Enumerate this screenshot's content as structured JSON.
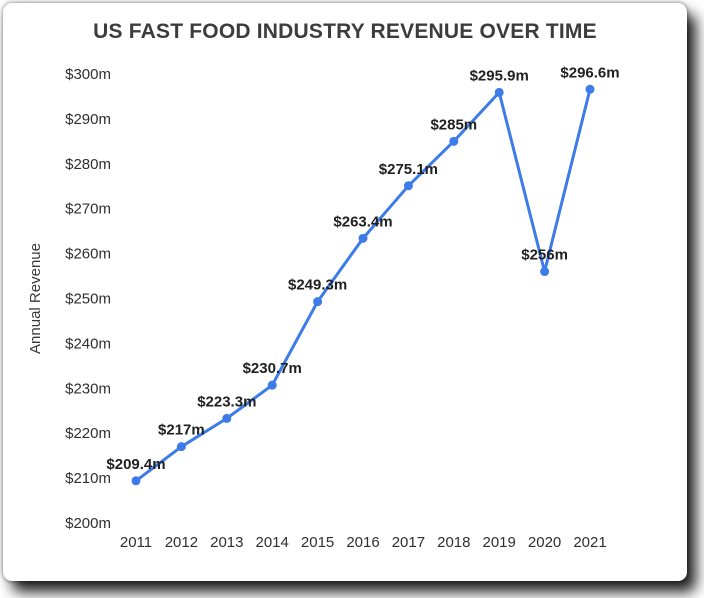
{
  "chart_data": {
    "type": "line",
    "title": "US FAST FOOD INDUSTRY REVENUE OVER TIME",
    "xlabel": "",
    "ylabel": "Annual Revenue",
    "categories": [
      "2011",
      "2012",
      "2013",
      "2014",
      "2015",
      "2016",
      "2017",
      "2018",
      "2019",
      "2020",
      "2021"
    ],
    "series": [
      {
        "name": "Annual Revenue ($m)",
        "values": [
          209.4,
          217,
          223.3,
          230.7,
          249.3,
          263.4,
          275.1,
          285,
          295.9,
          256,
          296.6
        ]
      }
    ],
    "point_labels": [
      "$209.4m",
      "$217m",
      "$223.3m",
      "$230.7m",
      "$249.3m",
      "$263.4m",
      "$275.1m",
      "$285m",
      "$295.9m",
      "$256m",
      "$296.6m"
    ],
    "y_ticks": [
      "$200m",
      "$210m",
      "$220m",
      "$230m",
      "$240m",
      "$250m",
      "$260m",
      "$270m",
      "$280m",
      "$290m",
      "$300m"
    ],
    "ylim": [
      200,
      300
    ],
    "grid": false,
    "legend": "none",
    "line_color": "#3d7be8",
    "point_color": "#3d7be8",
    "label_color": "#212121"
  }
}
